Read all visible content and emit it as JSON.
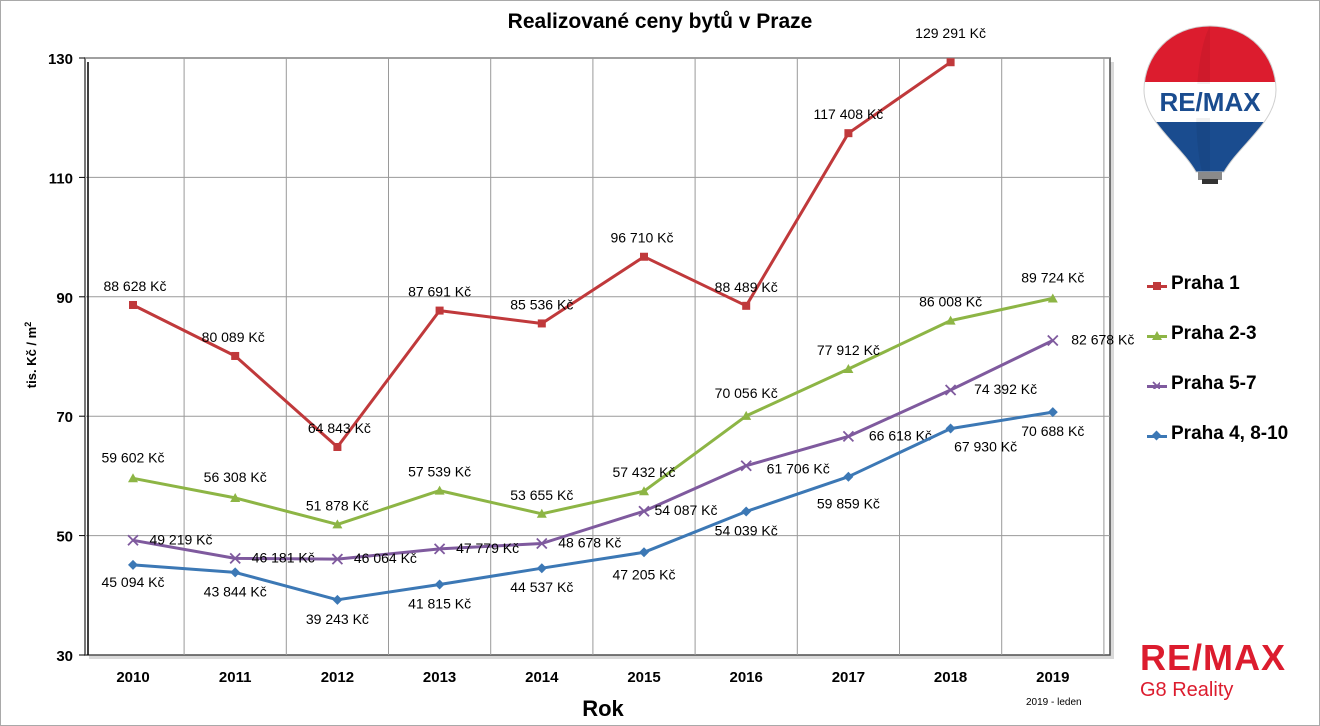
{
  "chart_data": {
    "type": "line",
    "title": "Realizované ceny bytů v Praze",
    "xlabel": "Rok",
    "ylabel": "tis. Kč / m",
    "ylabel_sup": "2",
    "x": [
      2010,
      2011,
      2012,
      2013,
      2014,
      2015,
      2016,
      2017,
      2018,
      2019
    ],
    "yticks": [
      30,
      50,
      70,
      90,
      110,
      130
    ],
    "ylim": [
      30,
      130
    ],
    "grid": true,
    "legend_position": "right",
    "series": [
      {
        "name": "Praha 1",
        "color": "#c0393b",
        "marker": "square",
        "values": [
          88.628,
          80.089,
          64.843,
          87.691,
          85.536,
          96.71,
          88.489,
          117.408,
          129.291,
          null
        ],
        "labels": [
          "88 628 Kč",
          "80 089 Kč",
          "64 843 Kč",
          "87 691 Kč",
          "85 536 Kč",
          "96 710 Kč",
          "88 489 Kč",
          "117 408 Kč",
          "129 291 Kč",
          ""
        ]
      },
      {
        "name": "Praha 2-3",
        "color": "#8db545",
        "marker": "triangle",
        "values": [
          59.602,
          56.308,
          51.878,
          57.539,
          53.655,
          57.432,
          70.056,
          77.912,
          86.008,
          89.724
        ],
        "labels": [
          "59 602 Kč",
          "56 308 Kč",
          "51 878 Kč",
          "57 539 Kč",
          "53 655 Kč",
          "57 432 Kč",
          "70 056 Kč",
          "77 912 Kč",
          "86 008 Kč",
          "89 724 Kč"
        ]
      },
      {
        "name": "Praha 5-7",
        "color": "#7f5a9e",
        "marker": "x",
        "values": [
          49.219,
          46.181,
          46.064,
          47.779,
          48.678,
          54.087,
          61.706,
          66.618,
          74.392,
          82.678
        ],
        "labels": [
          "49 219 Kč",
          "46 181 Kč",
          "46 064 Kč",
          "47 779 Kč",
          "48 678 Kč",
          "54 087 Kč",
          "61 706 Kč",
          "66 618 Kč",
          "74 392 Kč",
          "82 678 Kč"
        ]
      },
      {
        "name": "Praha 4, 8-10",
        "color": "#3c78b5",
        "marker": "diamond",
        "values": [
          45.094,
          43.844,
          39.243,
          41.815,
          44.537,
          47.205,
          54.039,
          59.859,
          67.93,
          70.688
        ],
        "labels": [
          "45 094 Kč",
          "43 844 Kč",
          "39 243 Kč",
          "41 815 Kč",
          "44 537 Kč",
          "47 205 Kč",
          "54 039 Kč",
          "59 859 Kč",
          "67 930 Kč",
          "70 688 Kč"
        ]
      }
    ]
  },
  "branding": {
    "balloon_text": "RE/MAX",
    "footer_logo": "RE/MAX",
    "footer_sub": "G8 Reality",
    "stamp": "2019 - leden",
    "brand_red": "#dc1c2e",
    "brand_blue": "#1a4c8f"
  }
}
